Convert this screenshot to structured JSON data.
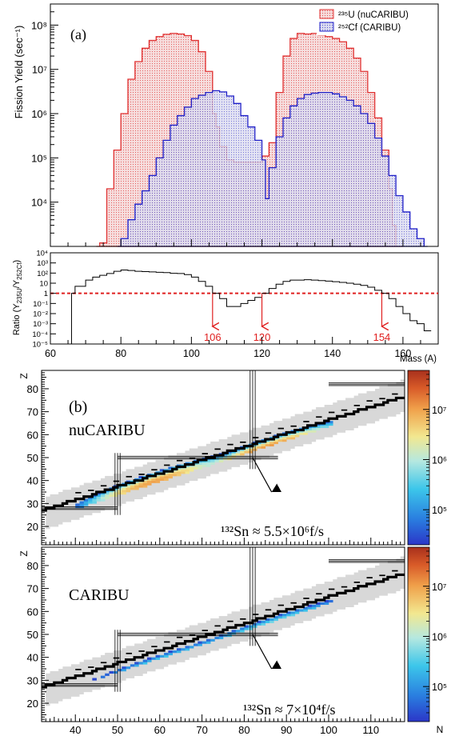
{
  "figure": {
    "panel_a_label": "(a)",
    "panel_b_label": "(b)"
  },
  "chart_data": [
    {
      "type": "area",
      "id": "yield",
      "ylabel": "Fission Yield (sec⁻¹)",
      "yscale": "log",
      "ylim": [
        1000,
        300000000
      ],
      "xlim": [
        60,
        170
      ],
      "y_ticks": [
        "10⁴",
        "10⁵",
        "10⁶",
        "10⁷",
        "10⁸"
      ],
      "y_tick_values": [
        10000,
        100000,
        1000000,
        10000000,
        100000000
      ],
      "legend_position": "top-right",
      "series": [
        {
          "name": "²³⁵U (nuCARIBU)",
          "color": "#e03030",
          "x": [
            73,
            74,
            76,
            78,
            80,
            82,
            84,
            86,
            88,
            90,
            92,
            94,
            96,
            98,
            100,
            102,
            104,
            106,
            107,
            108,
            110,
            112,
            114,
            116,
            118,
            120,
            122,
            124,
            126,
            128,
            130,
            132,
            134,
            136,
            138,
            140,
            142,
            144,
            146,
            148,
            150,
            152,
            154,
            156,
            157,
            158,
            160
          ],
          "values": [
            1000,
            1200,
            20000,
            150000,
            1000000,
            6000000,
            15000000,
            30000000,
            45000000,
            55000000,
            62000000,
            65000000,
            63000000,
            58000000,
            45000000,
            25000000,
            9000000,
            1000000,
            500000,
            180000,
            90000,
            80000,
            80000,
            80000,
            80000,
            110000,
            220000,
            3000000,
            20000000,
            50000000,
            65000000,
            63000000,
            65000000,
            60000000,
            55000000,
            50000000,
            42000000,
            30000000,
            18000000,
            9000000,
            3000000,
            800000,
            150000,
            20000,
            3000,
            1000,
            1000
          ]
        },
        {
          "name": "²⁵²Cf (CARIBU)",
          "color": "#2020c8",
          "x": [
            79,
            80,
            82,
            84,
            86,
            88,
            90,
            92,
            94,
            96,
            98,
            100,
            102,
            104,
            106,
            108,
            110,
            112,
            114,
            116,
            118,
            120,
            121,
            122,
            124,
            126,
            128,
            130,
            132,
            134,
            136,
            138,
            140,
            142,
            144,
            146,
            148,
            150,
            152,
            154,
            156,
            158,
            160,
            162,
            164,
            166,
            167
          ],
          "values": [
            1000,
            1500,
            4000,
            9000,
            18000,
            40000,
            100000,
            250000,
            550000,
            900000,
            1400000,
            2200000,
            2600000,
            3000000,
            3300000,
            3100000,
            2500000,
            1700000,
            900000,
            500000,
            250000,
            90000,
            12000,
            60000,
            300000,
            800000,
            1500000,
            2200000,
            2700000,
            2900000,
            3000000,
            3000000,
            2800000,
            2400000,
            2000000,
            1500000,
            1000000,
            600000,
            280000,
            110000,
            40000,
            14000,
            6000,
            2500,
            1500,
            1000,
            1000
          ]
        }
      ]
    },
    {
      "type": "line",
      "id": "ratio",
      "ylabel": "Ratio (Y",
      "ylabel_sub1": "235U",
      "ylabel_mid": "/Y",
      "ylabel_sub2": "252Cf",
      "ylabel_end": ")",
      "xlabel": "Mass (A)",
      "yscale": "log",
      "ylim": [
        1e-05,
        10000
      ],
      "xlim": [
        60,
        170
      ],
      "x_ticks": [
        "60",
        "80",
        "100",
        "120",
        "140",
        "160"
      ],
      "x_tick_values": [
        60,
        80,
        100,
        120,
        140,
        160
      ],
      "y_ticks": [
        "10⁻⁵",
        "10⁻⁴",
        "10⁻³",
        "10⁻²",
        "10⁻¹",
        "1",
        "10",
        "10²",
        "10³",
        "10⁴"
      ],
      "y_tick_values": [
        1e-05,
        0.0001,
        0.001,
        0.01,
        0.1,
        1,
        10,
        100,
        1000,
        10000
      ],
      "reference_line": {
        "y": 1,
        "color": "#e02020"
      },
      "x": [
        66,
        67,
        70,
        72,
        74,
        76,
        78,
        80,
        82,
        84,
        86,
        88,
        90,
        92,
        94,
        96,
        98,
        100,
        102,
        104,
        106,
        108,
        110,
        112,
        114,
        116,
        118,
        120,
        122,
        124,
        126,
        128,
        130,
        132,
        134,
        136,
        138,
        140,
        142,
        144,
        146,
        148,
        150,
        152,
        154,
        156,
        158,
        160,
        162,
        164,
        166,
        168
      ],
      "values": [
        1,
        5,
        20,
        40,
        60,
        90,
        150,
        200,
        180,
        150,
        140,
        130,
        120,
        110,
        95,
        90,
        70,
        40,
        15,
        5,
        1,
        0.3,
        0.05,
        0.05,
        0.1,
        0.2,
        0.4,
        1,
        3,
        8,
        15,
        20,
        20,
        22,
        20,
        18,
        16,
        14,
        12,
        10,
        8,
        6,
        4,
        2,
        1,
        0.3,
        0.05,
        0.01,
        0.002,
        0.001,
        0.0002,
        3e-05
      ],
      "annotations": [
        {
          "label": "106",
          "x": 106
        },
        {
          "label": "120",
          "x": 120
        },
        {
          "label": "154",
          "x": 154
        }
      ]
    },
    {
      "type": "heatmap",
      "id": "nucaribu",
      "title": "nuCARIBU",
      "ylabel": "Z",
      "xlim": [
        32,
        118
      ],
      "ylim": [
        12,
        88
      ],
      "y_ticks": [
        "20",
        "30",
        "40",
        "50",
        "60",
        "70",
        "80"
      ],
      "y_tick_values": [
        20,
        30,
        40,
        50,
        60,
        70,
        80
      ],
      "colorbar_scale": "log",
      "colorbar_ticks": [
        "10⁵",
        "10⁶",
        "10⁷"
      ],
      "colorbar_tick_values": [
        100000,
        1000000,
        10000000
      ],
      "annotation": {
        "text": "¹³²Sn ≈ 5.5×10⁶f/s",
        "N": 82,
        "Z": 50
      },
      "hot_regions": [
        {
          "N": 58,
          "Z": 39,
          "peak": 10000000
        },
        {
          "N": 85,
          "Z": 54,
          "peak": 12000000
        }
      ]
    },
    {
      "type": "heatmap",
      "id": "caribu",
      "title": "CARIBU",
      "ylabel": "Z",
      "xlabel": "N",
      "xlim": [
        32,
        118
      ],
      "ylim": [
        12,
        88
      ],
      "x_ticks": [
        "40",
        "50",
        "60",
        "70",
        "80",
        "90",
        "100",
        "110"
      ],
      "x_tick_values": [
        40,
        50,
        60,
        70,
        80,
        90,
        100,
        110
      ],
      "y_ticks": [
        "20",
        "30",
        "40",
        "50",
        "60",
        "70",
        "80"
      ],
      "y_tick_values": [
        20,
        30,
        40,
        50,
        60,
        70,
        80
      ],
      "colorbar_scale": "log",
      "colorbar_ticks": [
        "10⁵",
        "10⁶",
        "10⁷"
      ],
      "colorbar_tick_values": [
        100000,
        1000000,
        10000000
      ],
      "annotation": {
        "text": "¹³²Sn ≈ 7×10⁴f/s",
        "N": 82,
        "Z": 50
      },
      "hot_regions": [
        {
          "N": 60,
          "Z": 38,
          "peak": 600000
        },
        {
          "N": 86,
          "Z": 54,
          "peak": 700000
        }
      ]
    }
  ]
}
